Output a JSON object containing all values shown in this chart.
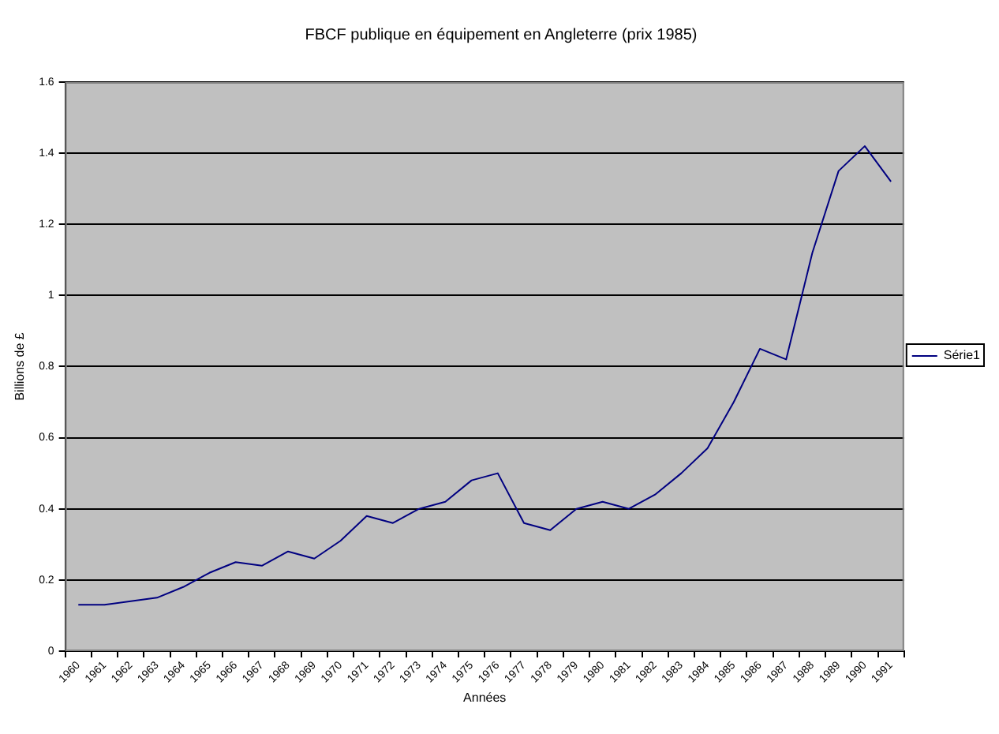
{
  "chart_data": {
    "type": "line",
    "title": "FBCF publique en équipement en Angleterre (prix 1985)",
    "xlabel": "Années",
    "ylabel": "Billions de £",
    "categories": [
      "1960",
      "1961",
      "1962",
      "1963",
      "1964",
      "1965",
      "1966",
      "1967",
      "1968",
      "1969",
      "1970",
      "1971",
      "1972",
      "1973",
      "1974",
      "1975",
      "1976",
      "1977",
      "1978",
      "1979",
      "1980",
      "1981",
      "1982",
      "1983",
      "1984",
      "1985",
      "1986",
      "1987",
      "1988",
      "1989",
      "1990",
      "1991"
    ],
    "series": [
      {
        "name": "Série1",
        "color": "#000080",
        "values": [
          0.13,
          0.13,
          0.14,
          0.15,
          0.18,
          0.22,
          0.25,
          0.24,
          0.28,
          0.26,
          0.31,
          0.38,
          0.36,
          0.4,
          0.42,
          0.48,
          0.5,
          0.36,
          0.34,
          0.4,
          0.42,
          0.4,
          0.44,
          0.5,
          0.57,
          0.7,
          0.85,
          0.82,
          1.12,
          1.35,
          1.42,
          1.32
        ]
      }
    ],
    "ylim": [
      0,
      1.6
    ],
    "yticks": [
      0,
      0.2,
      0.4,
      0.6,
      0.8,
      1,
      1.2,
      1.4,
      1.6
    ],
    "grid": "y",
    "legend": "right",
    "marker": "none",
    "line_style": "solid"
  }
}
